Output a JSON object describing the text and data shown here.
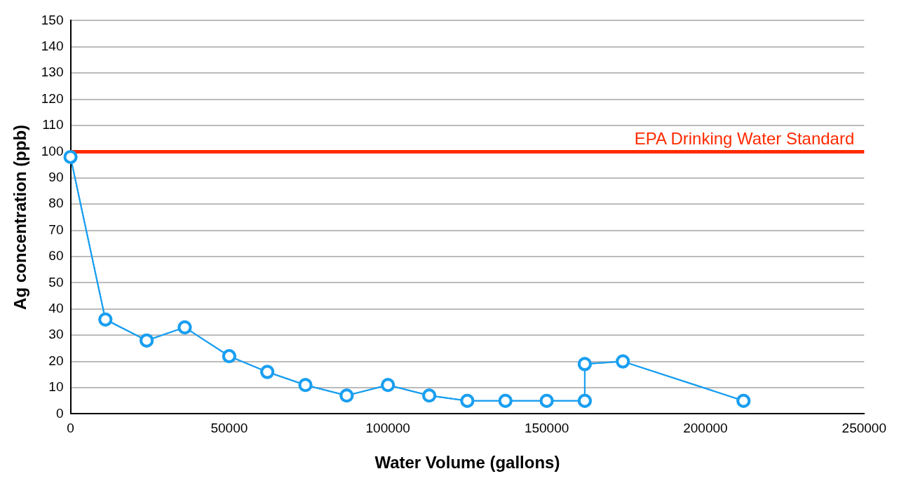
{
  "chart_data": {
    "type": "line",
    "xlabel": "Water Volume (gallons)",
    "ylabel": "Ag concentration (ppb)",
    "x": [
      0,
      11000,
      24000,
      36000,
      50000,
      62000,
      74000,
      87000,
      100000,
      113000,
      125000,
      137000,
      150000,
      162000,
      162000,
      174000,
      212000
    ],
    "series": [
      {
        "color": "#1a9ff0",
        "values": [
          98,
          36,
          28,
          33,
          22,
          16,
          11,
          7,
          11,
          7,
          5,
          5,
          5,
          5,
          19,
          20,
          5
        ]
      }
    ],
    "xlim": [
      0,
      250000
    ],
    "xticks": [
      0,
      50000,
      100000,
      150000,
      200000,
      250000
    ],
    "ylim": [
      0,
      150
    ],
    "yticks": [
      0,
      10,
      20,
      30,
      40,
      50,
      60,
      70,
      80,
      90,
      100,
      110,
      120,
      130,
      140,
      150
    ],
    "ref_lines": [
      {
        "axis": "y",
        "value": 100,
        "label": "EPA Drinking Water Standard",
        "color": "#ff2a00"
      }
    ],
    "grid": "y",
    "legend": false,
    "marker": "circle",
    "line_style": "solid"
  }
}
